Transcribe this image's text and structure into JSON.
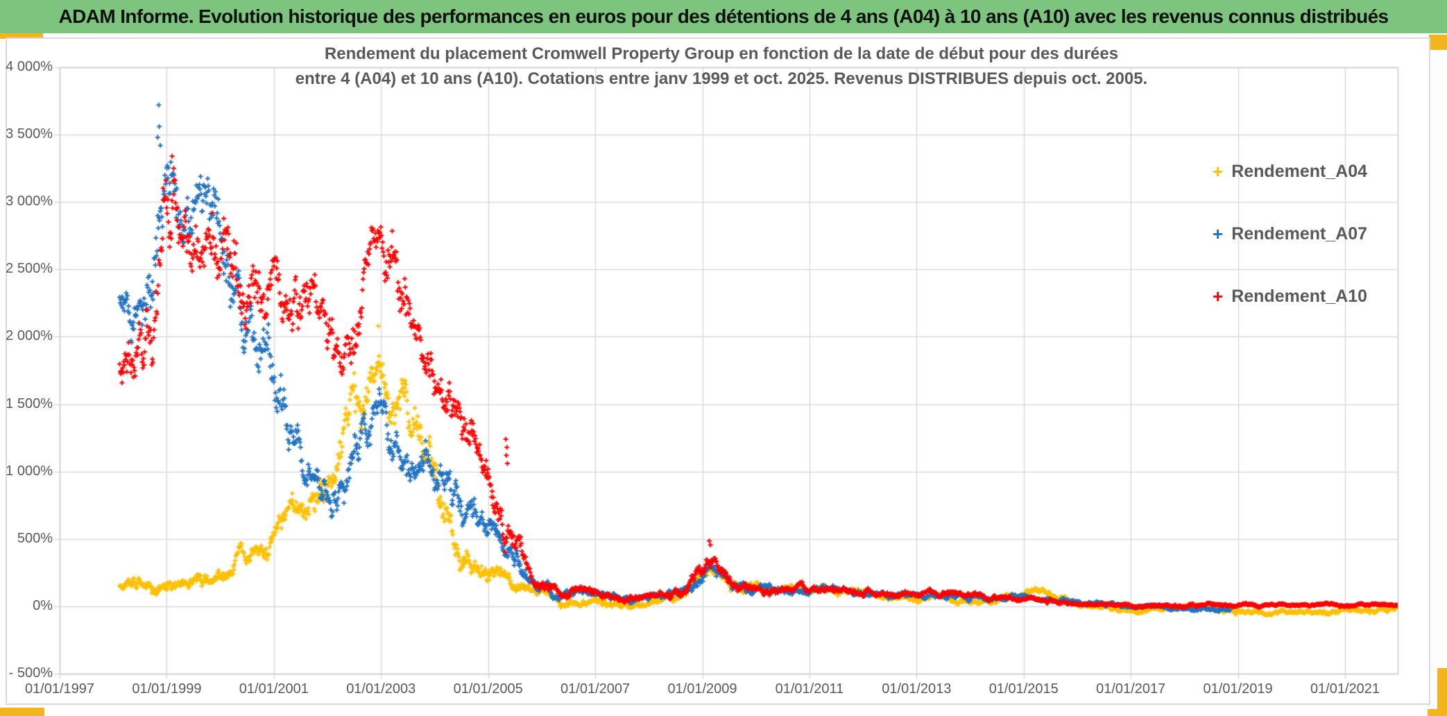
{
  "banner": {
    "title": "ADAM Informe. Evolution historique des performances en euros pour des détentions de 4 ans (A04) à 10 ans (A10) avec les revenus connus distribués",
    "background_color": "#7dc57f",
    "accent_color": "#f2b51d"
  },
  "chart": {
    "title_line1": "Rendement du placement Cromwell Property Group en fonction de la date de début pour des durées",
    "title_line2": "entre 4 (A04) et 10 ans (A10). Cotations entre janv 1999 et oct. 2025. Revenus DISTRIBUES depuis oct. 2005.",
    "title_color": "#595959",
    "gridline_color": "#d9d9d9"
  },
  "chart_data": {
    "type": "scatter",
    "marker": "plus",
    "grid": true,
    "legend_position": "right",
    "x_axis": {
      "type": "date",
      "tick_labels": [
        "01/01/1997",
        "01/01/1999",
        "01/01/2001",
        "01/01/2003",
        "01/01/2005",
        "01/01/2007",
        "01/01/2009",
        "01/01/2011",
        "01/01/2013",
        "01/01/2015",
        "01/01/2017",
        "01/01/2019",
        "01/01/2021"
      ],
      "tick_years": [
        1997,
        1999,
        2001,
        2003,
        2005,
        2007,
        2009,
        2011,
        2013,
        2015,
        2017,
        2019,
        2021
      ],
      "range_years": [
        1997,
        2022
      ]
    },
    "y_axis": {
      "unit": "%",
      "tick_labels": [
        "4 000%",
        "3 500%",
        "3 000%",
        "2 500%",
        "2 000%",
        "1 500%",
        "1 000%",
        "500%",
        "0%",
        "- 500%"
      ],
      "tick_values": [
        4000,
        3500,
        3000,
        2500,
        2000,
        1500,
        1000,
        500,
        0,
        -500
      ],
      "min": -500,
      "max": 4000
    },
    "density_points_per_year": 90,
    "envelope_format": "[yearFraction, mean_percent, spread_percent] keyframes of the dense weekly scatter",
    "series": [
      {
        "name": "Rendement_A04",
        "color": "#FFC000",
        "seed": 101,
        "t_start": 1998.12,
        "t_end": 2021.95,
        "envelope": [
          [
            1998.12,
            150,
            45
          ],
          [
            1998.45,
            185,
            55
          ],
          [
            1998.75,
            140,
            45
          ],
          [
            1999.05,
            225,
            55
          ],
          [
            1999.35,
            165,
            45
          ],
          [
            1999.6,
            215,
            55
          ],
          [
            1999.9,
            175,
            45
          ],
          [
            2000.2,
            270,
            65
          ],
          [
            2000.5,
            380,
            85
          ],
          [
            2000.8,
            420,
            85
          ],
          [
            2001.1,
            520,
            100
          ],
          [
            2001.4,
            680,
            120
          ],
          [
            2001.7,
            840,
            140
          ],
          [
            2001.95,
            950,
            150
          ],
          [
            2002.15,
            830,
            130
          ],
          [
            2002.4,
            1250,
            200
          ],
          [
            2002.65,
            1600,
            220
          ],
          [
            2002.85,
            1850,
            180
          ],
          [
            2002.97,
            2000,
            90
          ],
          [
            2003.1,
            1550,
            220
          ],
          [
            2003.3,
            1150,
            200
          ],
          [
            2003.45,
            1450,
            140
          ],
          [
            2003.6,
            1300,
            180
          ],
          [
            2003.8,
            1050,
            180
          ],
          [
            2004.0,
            820,
            160
          ],
          [
            2004.2,
            600,
            140
          ],
          [
            2004.5,
            340,
            90
          ],
          [
            2004.8,
            280,
            75
          ],
          [
            2005.05,
            320,
            75
          ],
          [
            2005.3,
            215,
            60
          ],
          [
            2005.6,
            130,
            40
          ],
          [
            2005.9,
            80,
            32
          ],
          [
            2006.2,
            40,
            28
          ],
          [
            2006.6,
            18,
            24
          ],
          [
            2007.0,
            35,
            24
          ],
          [
            2007.4,
            -5,
            22
          ],
          [
            2007.8,
            15,
            22
          ],
          [
            2008.2,
            40,
            24
          ],
          [
            2008.6,
            80,
            30
          ],
          [
            2008.9,
            180,
            42
          ],
          [
            2009.15,
            285,
            52
          ],
          [
            2009.4,
            205,
            42
          ],
          [
            2009.7,
            120,
            34
          ],
          [
            2010.0,
            135,
            30
          ],
          [
            2010.4,
            95,
            26
          ],
          [
            2010.8,
            110,
            26
          ],
          [
            2011.2,
            135,
            26
          ],
          [
            2011.6,
            125,
            25
          ],
          [
            2012.0,
            100,
            24
          ],
          [
            2012.4,
            65,
            22
          ],
          [
            2012.9,
            55,
            21
          ],
          [
            2013.4,
            70,
            21
          ],
          [
            2013.9,
            55,
            20
          ],
          [
            2014.4,
            35,
            18
          ],
          [
            2014.9,
            90,
            24
          ],
          [
            2015.15,
            125,
            26
          ],
          [
            2015.5,
            80,
            22
          ],
          [
            2015.9,
            25,
            17
          ],
          [
            2016.3,
            -5,
            15
          ],
          [
            2016.8,
            -20,
            15
          ],
          [
            2017.3,
            -30,
            15
          ],
          [
            2017.8,
            -15,
            15
          ],
          [
            2018.2,
            5,
            15
          ],
          [
            2018.6,
            -20,
            15
          ],
          [
            2019.0,
            -35,
            15
          ],
          [
            2019.5,
            -42,
            15
          ],
          [
            2020.0,
            -30,
            15
          ],
          [
            2020.5,
            -42,
            15
          ],
          [
            2021.0,
            -35,
            15
          ],
          [
            2021.5,
            -30,
            15
          ],
          [
            2021.95,
            -22,
            15
          ]
        ],
        "outliers": [
          [
            2002.95,
            2080
          ],
          [
            2003.44,
            1560
          ]
        ]
      },
      {
        "name": "Rendement_A07",
        "color": "#2273C3",
        "seed": 202,
        "t_start": 1998.12,
        "t_end": 2018.86,
        "envelope": [
          [
            1998.12,
            2320,
            120
          ],
          [
            1998.35,
            2130,
            150
          ],
          [
            1998.6,
            2250,
            200
          ],
          [
            1998.8,
            2850,
            280
          ],
          [
            1999.0,
            3080,
            220
          ],
          [
            1999.2,
            2980,
            260
          ],
          [
            1999.45,
            2850,
            260
          ],
          [
            1999.7,
            3080,
            200
          ],
          [
            1999.9,
            2720,
            240
          ],
          [
            2000.15,
            2580,
            260
          ],
          [
            2000.4,
            2200,
            240
          ],
          [
            2000.7,
            2000,
            210
          ],
          [
            2000.95,
            1750,
            240
          ],
          [
            2001.2,
            1450,
            210
          ],
          [
            2001.5,
            1250,
            170
          ],
          [
            2001.8,
            1050,
            150
          ],
          [
            2002.05,
            950,
            140
          ],
          [
            2002.3,
            900,
            135
          ],
          [
            2002.55,
            1080,
            150
          ],
          [
            2002.8,
            1350,
            150
          ],
          [
            2002.97,
            1620,
            140
          ],
          [
            2003.15,
            1350,
            170
          ],
          [
            2003.4,
            1150,
            140
          ],
          [
            2003.65,
            1050,
            140
          ],
          [
            2003.95,
            1170,
            140
          ],
          [
            2004.2,
            1020,
            130
          ],
          [
            2004.5,
            840,
            115
          ],
          [
            2004.8,
            680,
            95
          ],
          [
            2005.05,
            520,
            85
          ],
          [
            2005.3,
            430,
            75
          ],
          [
            2005.55,
            300,
            65
          ],
          [
            2005.8,
            160,
            42
          ],
          [
            2006.1,
            110,
            32
          ],
          [
            2006.5,
            85,
            26
          ],
          [
            2006.9,
            90,
            26
          ],
          [
            2007.3,
            65,
            24
          ],
          [
            2007.7,
            55,
            23
          ],
          [
            2008.1,
            75,
            24
          ],
          [
            2008.6,
            95,
            28
          ],
          [
            2008.9,
            185,
            42
          ],
          [
            2009.15,
            272,
            46
          ],
          [
            2009.4,
            205,
            38
          ],
          [
            2009.7,
            130,
            32
          ],
          [
            2010.0,
            140,
            28
          ],
          [
            2010.4,
            105,
            25
          ],
          [
            2010.8,
            115,
            25
          ],
          [
            2011.2,
            130,
            25
          ],
          [
            2011.6,
            120,
            23
          ],
          [
            2012.0,
            105,
            22
          ],
          [
            2012.5,
            80,
            20
          ],
          [
            2013.0,
            80,
            20
          ],
          [
            2013.5,
            92,
            20
          ],
          [
            2014.0,
            70,
            19
          ],
          [
            2014.5,
            52,
            17
          ],
          [
            2015.0,
            62,
            17
          ],
          [
            2015.5,
            42,
            15
          ],
          [
            2016.0,
            28,
            14
          ],
          [
            2016.5,
            18,
            13
          ],
          [
            2017.0,
            8,
            13
          ],
          [
            2017.5,
            0,
            13
          ],
          [
            2018.0,
            -12,
            13
          ],
          [
            2018.5,
            -22,
            13
          ],
          [
            2018.86,
            -25,
            13
          ]
        ],
        "outliers": [
          [
            1998.85,
            3720
          ],
          [
            1998.86,
            3560
          ],
          [
            1998.83,
            3480
          ],
          [
            1998.88,
            3420
          ]
        ]
      },
      {
        "name": "Rendement_A10",
        "color": "#FF0000",
        "seed": 303,
        "t_start": 1998.12,
        "t_end": 2022.0,
        "envelope": [
          [
            1998.12,
            1750,
            140
          ],
          [
            1998.4,
            1680,
            170
          ],
          [
            1998.65,
            2050,
            240
          ],
          [
            1998.9,
            2550,
            320
          ],
          [
            1999.12,
            2980,
            260
          ],
          [
            1999.4,
            2550,
            280
          ],
          [
            1999.65,
            2680,
            260
          ],
          [
            1999.9,
            2480,
            260
          ],
          [
            2000.15,
            2580,
            240
          ],
          [
            2000.4,
            2440,
            240
          ],
          [
            2000.7,
            2330,
            260
          ],
          [
            2000.95,
            2540,
            210
          ],
          [
            2001.2,
            2400,
            240
          ],
          [
            2001.45,
            2280,
            230
          ],
          [
            2001.75,
            2550,
            220
          ],
          [
            2002.0,
            2100,
            210
          ],
          [
            2002.3,
            1850,
            190
          ],
          [
            2002.6,
            2120,
            240
          ],
          [
            2002.96,
            2870,
            120
          ],
          [
            2003.15,
            2420,
            220
          ],
          [
            2003.4,
            2180,
            200
          ],
          [
            2003.65,
            1900,
            180
          ],
          [
            2003.9,
            1600,
            165
          ],
          [
            2004.15,
            1620,
            155
          ],
          [
            2004.4,
            1500,
            150
          ],
          [
            2004.6,
            1280,
            155
          ],
          [
            2004.85,
            1100,
            135
          ],
          [
            2005.1,
            800,
            145
          ],
          [
            2005.35,
            580,
            115
          ],
          [
            2005.6,
            400,
            95
          ],
          [
            2005.85,
            210,
            55
          ],
          [
            2006.1,
            150,
            38
          ],
          [
            2006.5,
            110,
            30
          ],
          [
            2006.9,
            100,
            28
          ],
          [
            2007.3,
            70,
            25
          ],
          [
            2007.7,
            60,
            24
          ],
          [
            2008.1,
            80,
            25
          ],
          [
            2008.6,
            100,
            30
          ],
          [
            2008.9,
            200,
            46
          ],
          [
            2009.15,
            330,
            56
          ],
          [
            2009.4,
            230,
            42
          ],
          [
            2009.7,
            140,
            35
          ],
          [
            2010.0,
            150,
            30
          ],
          [
            2010.4,
            110,
            26
          ],
          [
            2010.8,
            120,
            26
          ],
          [
            2011.2,
            135,
            26
          ],
          [
            2011.6,
            125,
            24
          ],
          [
            2012.0,
            110,
            23
          ],
          [
            2012.5,
            85,
            21
          ],
          [
            2013.0,
            85,
            21
          ],
          [
            2013.5,
            95,
            21
          ],
          [
            2014.0,
            75,
            19
          ],
          [
            2014.5,
            55,
            17
          ],
          [
            2015.0,
            60,
            16
          ],
          [
            2015.5,
            35,
            13
          ],
          [
            2016.0,
            20,
            11
          ],
          [
            2016.5,
            12,
            10
          ],
          [
            2017.0,
            10,
            10
          ],
          [
            2017.5,
            8,
            10
          ],
          [
            2018.0,
            10,
            10
          ],
          [
            2018.5,
            12,
            10
          ],
          [
            2019.0,
            10,
            9
          ],
          [
            2019.5,
            8,
            9
          ],
          [
            2020.0,
            10,
            9
          ],
          [
            2020.5,
            10,
            9
          ],
          [
            2021.0,
            10,
            9
          ],
          [
            2021.5,
            10,
            9
          ],
          [
            2022.0,
            10,
            9
          ]
        ],
        "outliers": [
          [
            1999.1,
            3340
          ],
          [
            1999.13,
            3250
          ],
          [
            2005.33,
            1240
          ],
          [
            2005.35,
            1180
          ],
          [
            2005.34,
            1120
          ],
          [
            2005.36,
            1060
          ],
          [
            2009.13,
            485
          ],
          [
            2009.15,
            455
          ]
        ]
      }
    ]
  }
}
